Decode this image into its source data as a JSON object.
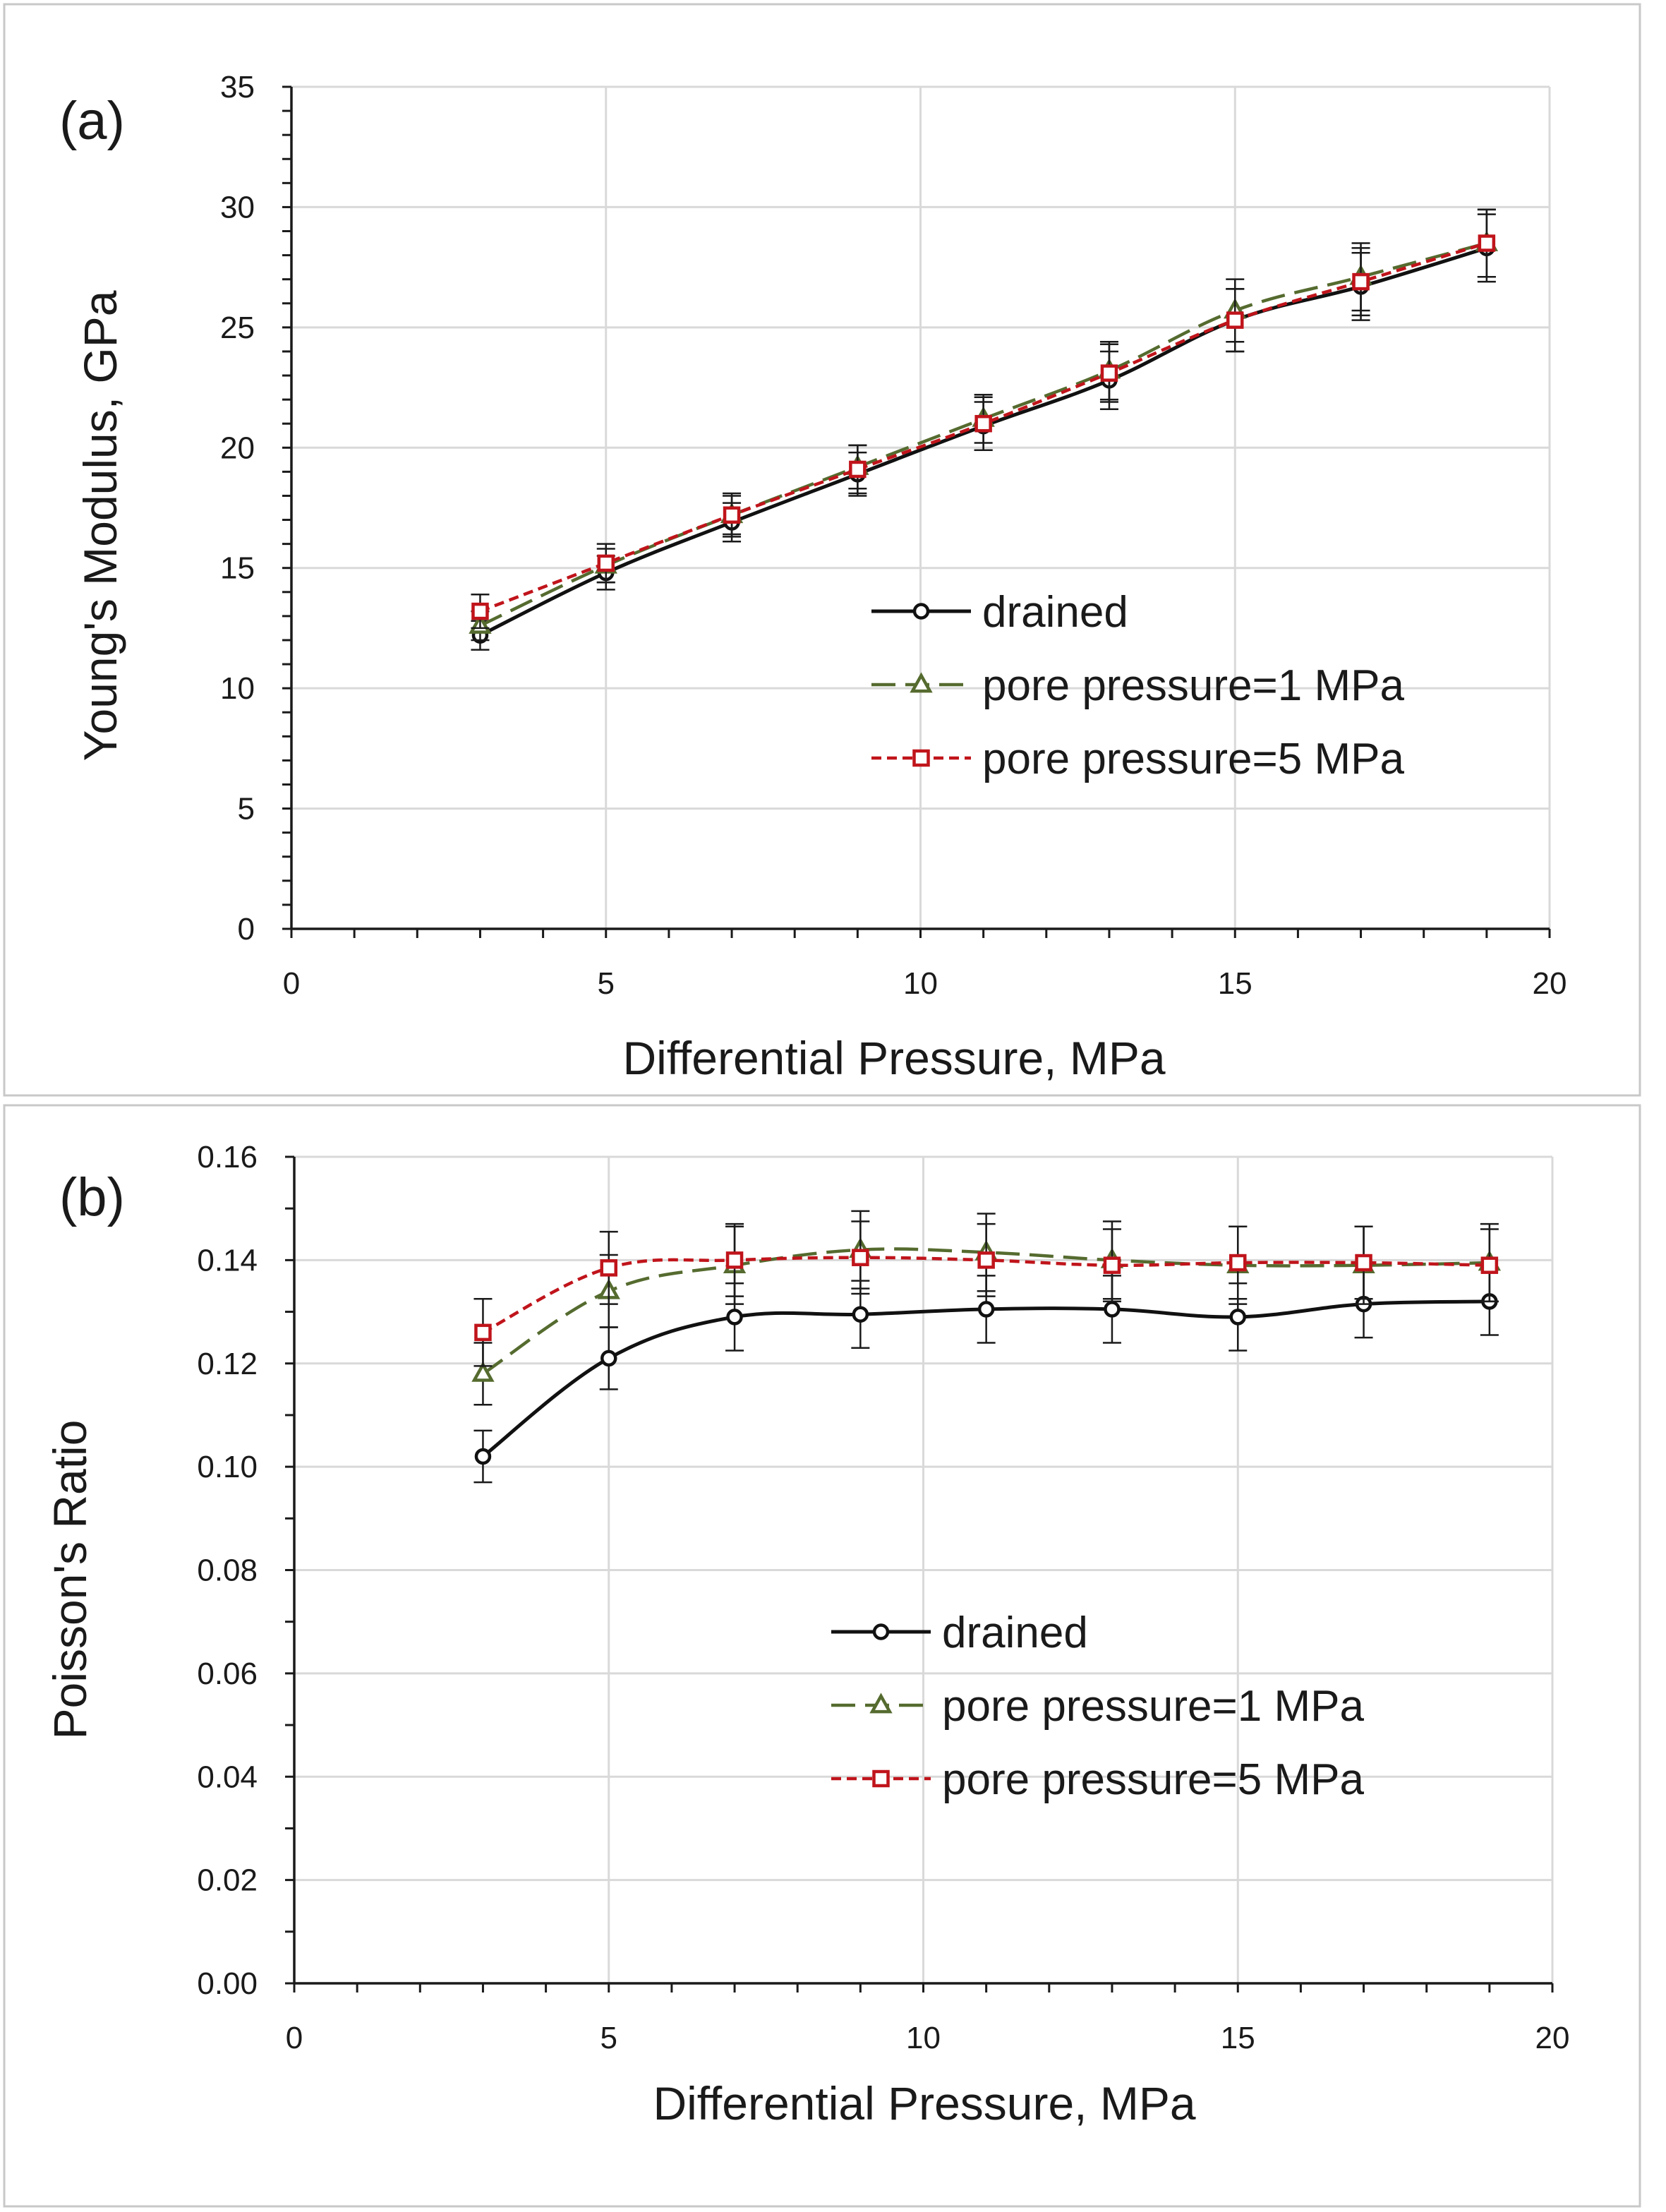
{
  "chart_data": [
    {
      "id": "a",
      "type": "line",
      "panel_label": "(a)",
      "title": "",
      "xlabel": "Differential Pressure, MPa",
      "ylabel": "Young's Modulus, GPa",
      "xlim": [
        0,
        20
      ],
      "ylim": [
        0,
        35
      ],
      "xticks": [
        0,
        5,
        10,
        15,
        20
      ],
      "yticks": [
        0,
        5,
        10,
        15,
        20,
        25,
        30,
        35
      ],
      "xtick_labels": [
        "0",
        "5",
        "10",
        "15",
        "20"
      ],
      "ytick_labels": [
        "0",
        "5",
        "10",
        "15",
        "20",
        "25",
        "30",
        "35"
      ],
      "grid": true,
      "legend_position": "center-right",
      "x": [
        3,
        5,
        7,
        9,
        11,
        13,
        15,
        17,
        19
      ],
      "series": [
        {
          "name": "drained",
          "color": "#111111",
          "dash": "solid",
          "marker": "circle",
          "values": [
            12.2,
            14.8,
            16.9,
            18.9,
            20.9,
            22.8,
            25.3,
            26.7,
            28.3
          ],
          "errors": [
            0.6,
            0.7,
            0.8,
            0.9,
            1.0,
            1.2,
            1.3,
            1.4,
            1.4
          ]
        },
        {
          "name": "pore pressure=1 MPa",
          "color": "#556b2f",
          "dash": "longdash",
          "marker": "triangle",
          "values": [
            12.6,
            15.1,
            17.2,
            19.2,
            21.2,
            23.2,
            25.7,
            27.1,
            28.5
          ],
          "errors": [
            0.6,
            0.7,
            0.8,
            0.9,
            1.0,
            1.2,
            1.3,
            1.4,
            1.4
          ]
        },
        {
          "name": "pore pressure=5 MPa",
          "color": "#c0141b",
          "dash": "shortdash",
          "marker": "square",
          "values": [
            13.2,
            15.2,
            17.2,
            19.1,
            21.0,
            23.1,
            25.3,
            26.9,
            28.5
          ],
          "errors": [
            0.7,
            0.8,
            0.9,
            1.0,
            1.1,
            1.2,
            1.3,
            1.4,
            1.4
          ]
        }
      ]
    },
    {
      "id": "b",
      "type": "line",
      "panel_label": "(b)",
      "title": "",
      "xlabel": "Differential Pressure, MPa",
      "ylabel": "Poisson's Ratio",
      "xlim": [
        0,
        20
      ],
      "ylim": [
        0,
        0.16
      ],
      "xticks": [
        0,
        5,
        10,
        15,
        20
      ],
      "yticks": [
        0,
        0.02,
        0.04,
        0.06,
        0.08,
        0.1,
        0.12,
        0.14,
        0.16
      ],
      "xtick_labels": [
        "0",
        "5",
        "10",
        "15",
        "20"
      ],
      "ytick_labels": [
        "0.00",
        "0.02",
        "0.04",
        "0.06",
        "0.08",
        "0.10",
        "0.12",
        "0.14",
        "0.16"
      ],
      "grid": true,
      "legend_position": "center-right",
      "x": [
        3,
        5,
        7,
        9,
        11,
        13,
        15,
        17,
        19
      ],
      "series": [
        {
          "name": "drained",
          "color": "#111111",
          "dash": "solid",
          "marker": "circle",
          "values": [
            0.102,
            0.121,
            0.129,
            0.1295,
            0.1305,
            0.1305,
            0.129,
            0.1315,
            0.132
          ],
          "errors": [
            0.005,
            0.006,
            0.0065,
            0.0065,
            0.0065,
            0.0065,
            0.0065,
            0.0065,
            0.0065
          ]
        },
        {
          "name": "pore pressure=1 MPa",
          "color": "#556b2f",
          "dash": "longdash",
          "marker": "triangle",
          "values": [
            0.118,
            0.134,
            0.139,
            0.142,
            0.1415,
            0.14,
            0.139,
            0.139,
            0.1395
          ],
          "errors": [
            0.006,
            0.007,
            0.0075,
            0.0075,
            0.0075,
            0.0075,
            0.0075,
            0.0075,
            0.0075
          ]
        },
        {
          "name": "pore pressure=5 MPa",
          "color": "#c0141b",
          "dash": "shortdash",
          "marker": "square",
          "values": [
            0.126,
            0.1385,
            0.14,
            0.1405,
            0.14,
            0.139,
            0.1395,
            0.1395,
            0.139
          ],
          "errors": [
            0.0065,
            0.007,
            0.007,
            0.007,
            0.007,
            0.007,
            0.007,
            0.007,
            0.007
          ]
        }
      ]
    }
  ]
}
